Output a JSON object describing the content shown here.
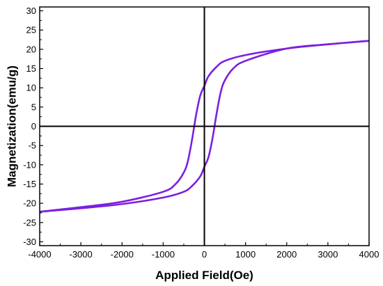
{
  "chart_data": {
    "type": "line",
    "title": "",
    "xlabel": "Applied Field(Oe)",
    "ylabel": "Magnetization(emu/g)",
    "xlim": [
      -4000,
      4000
    ],
    "ylim": [
      -31,
      31
    ],
    "x_ticks": [
      -4000,
      -3000,
      -2000,
      -1000,
      0,
      1000,
      2000,
      3000,
      4000
    ],
    "y_ticks": [
      30,
      25,
      20,
      15,
      10,
      5,
      0,
      -5,
      -10,
      -15,
      -20,
      -25,
      -30
    ],
    "x_tick_labels": [
      "-4000",
      "-3000",
      "-2000",
      "-1000",
      "0",
      "1000",
      "2000",
      "3000",
      "4000"
    ],
    "y_tick_labels": [
      "30",
      "25",
      "20",
      "15",
      "10",
      "5",
      "0",
      "-5",
      "-10",
      "-15",
      "-20",
      "-25",
      "-30"
    ],
    "grid": false,
    "reference_lines": {
      "x": 0,
      "y": 0
    },
    "series": [
      {
        "color": "#7B1FE0",
        "x": [
          -4000,
          -3000,
          -2000,
          -1000,
          -700,
          -500,
          -400,
          -300,
          -200,
          -100,
          0,
          100,
          300,
          500,
          1000,
          2000,
          3000,
          4000
        ],
        "values": [
          -22.2,
          -21,
          -19.6,
          -17,
          -15,
          -12,
          -9,
          -3.5,
          3,
          8,
          10.5,
          13,
          15.5,
          17,
          18.5,
          20.2,
          21.3,
          22.2
        ]
      },
      {
        "color": "#7B1FE0",
        "x": [
          4000,
          3000,
          2000,
          1000,
          700,
          500,
          400,
          300,
          200,
          100,
          0,
          -100,
          -300,
          -500,
          -1000,
          -2000,
          -3000,
          -4000
        ],
        "values": [
          22.2,
          21.3,
          20.2,
          17,
          15,
          12,
          9,
          3.5,
          -3,
          -8,
          -10.5,
          -13,
          -15.5,
          -17,
          -18.5,
          -20.2,
          -21.3,
          -22.2
        ]
      }
    ]
  }
}
